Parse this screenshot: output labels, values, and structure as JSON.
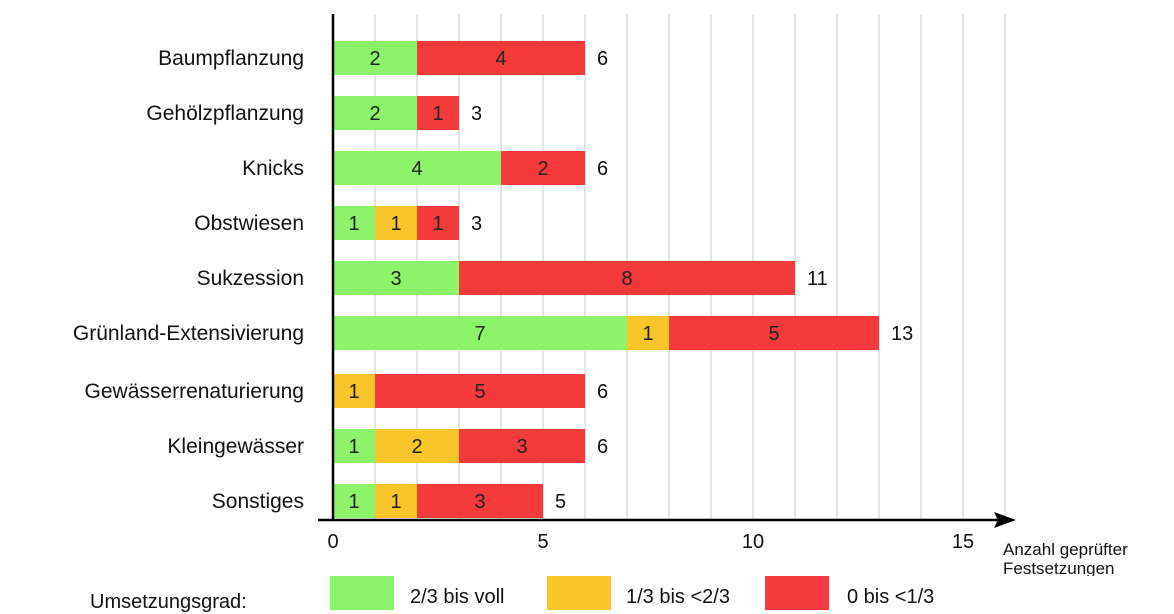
{
  "chart_data": {
    "type": "bar",
    "orientation": "horizontal",
    "stacked": true,
    "categories": [
      "Baumpflanzung",
      "Gehölzpflanzung",
      "Knicks",
      "Obstwiesen",
      "Sukzession",
      "Grünland-Extensivierung",
      "Gewässerrenaturierung",
      "Kleingewässer",
      "Sonstiges"
    ],
    "series": [
      {
        "name": "2/3 bis voll",
        "color": "#8cf36a",
        "values": [
          2,
          2,
          4,
          1,
          3,
          7,
          0,
          1,
          1
        ]
      },
      {
        "name": "1/3 bis <2/3",
        "color": "#f8c62a",
        "values": [
          0,
          0,
          0,
          1,
          0,
          1,
          1,
          2,
          1
        ]
      },
      {
        "name": "0 bis <1/3",
        "color": "#f43a3a",
        "values": [
          4,
          1,
          2,
          1,
          8,
          5,
          5,
          3,
          3
        ]
      }
    ],
    "totals": [
      6,
      3,
      6,
      3,
      11,
      13,
      6,
      6,
      5
    ],
    "xticks": [
      0,
      5,
      10,
      15
    ],
    "xlim": [
      0,
      16
    ],
    "xlabel": "Anzahl geprüfter Festsetzungen",
    "grid": true
  },
  "legend": {
    "title": "Umsetzungsgrad:",
    "items": [
      "2/3 bis voll",
      "1/3 bis <2/3",
      "0 bis <1/3"
    ]
  }
}
